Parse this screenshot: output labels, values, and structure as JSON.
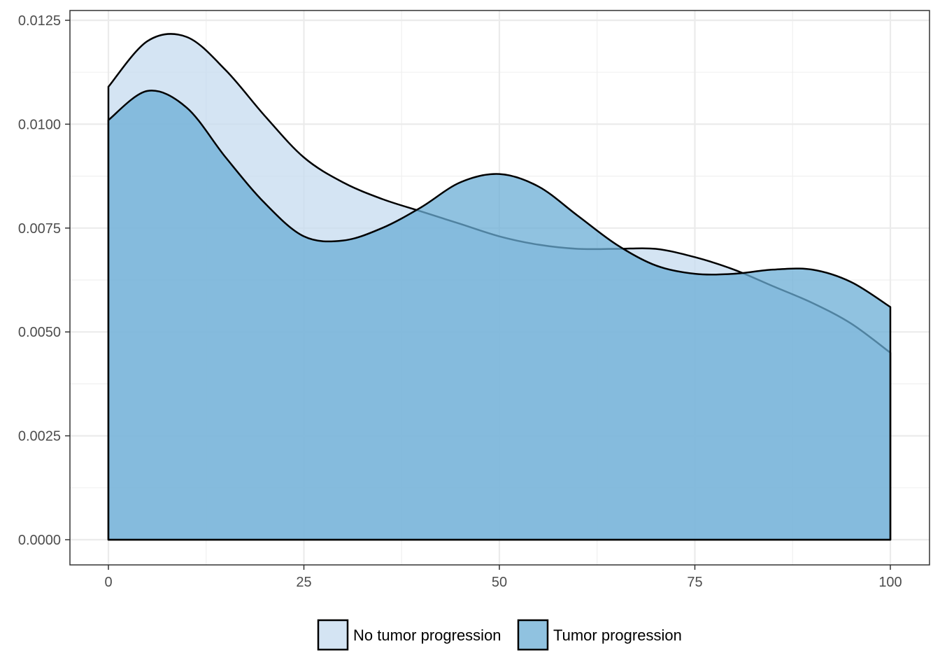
{
  "chart_data": {
    "type": "area",
    "chart_subtype": "density",
    "title": "",
    "xlabel": "",
    "ylabel": "",
    "xlim": [
      0,
      100
    ],
    "ylim": [
      0,
      0.0125
    ],
    "x_ticks": [
      0,
      25,
      50,
      75,
      100
    ],
    "x_tick_labels": [
      "0",
      "25",
      "50",
      "75",
      "100"
    ],
    "y_ticks": [
      0,
      0.0025,
      0.005,
      0.0075,
      0.01,
      0.0125
    ],
    "y_tick_labels": [
      "0.0000",
      "0.0025",
      "0.0050",
      "0.0075",
      "0.0100",
      "0.0125"
    ],
    "grid": true,
    "legend_position": "bottom",
    "x": [
      0,
      5,
      10,
      15,
      20,
      25,
      30,
      35,
      40,
      45,
      50,
      55,
      60,
      65,
      70,
      75,
      80,
      85,
      90,
      95,
      100
    ],
    "series": [
      {
        "name": "No tumor progression",
        "color": "#c6dbef",
        "values": [
          0.0109,
          0.012,
          0.0121,
          0.0113,
          0.0102,
          0.0092,
          0.0086,
          0.0082,
          0.0079,
          0.0076,
          0.0073,
          0.0071,
          0.007,
          0.007,
          0.007,
          0.0068,
          0.0065,
          0.0061,
          0.0057,
          0.0052,
          0.0045
        ]
      },
      {
        "name": "Tumor progression",
        "color": "#6baed6",
        "values": [
          0.0101,
          0.0108,
          0.0104,
          0.0092,
          0.0081,
          0.0073,
          0.0072,
          0.0075,
          0.008,
          0.0086,
          0.0088,
          0.0085,
          0.0078,
          0.0071,
          0.0066,
          0.0064,
          0.0064,
          0.0065,
          0.0065,
          0.0062,
          0.0056
        ]
      }
    ]
  }
}
